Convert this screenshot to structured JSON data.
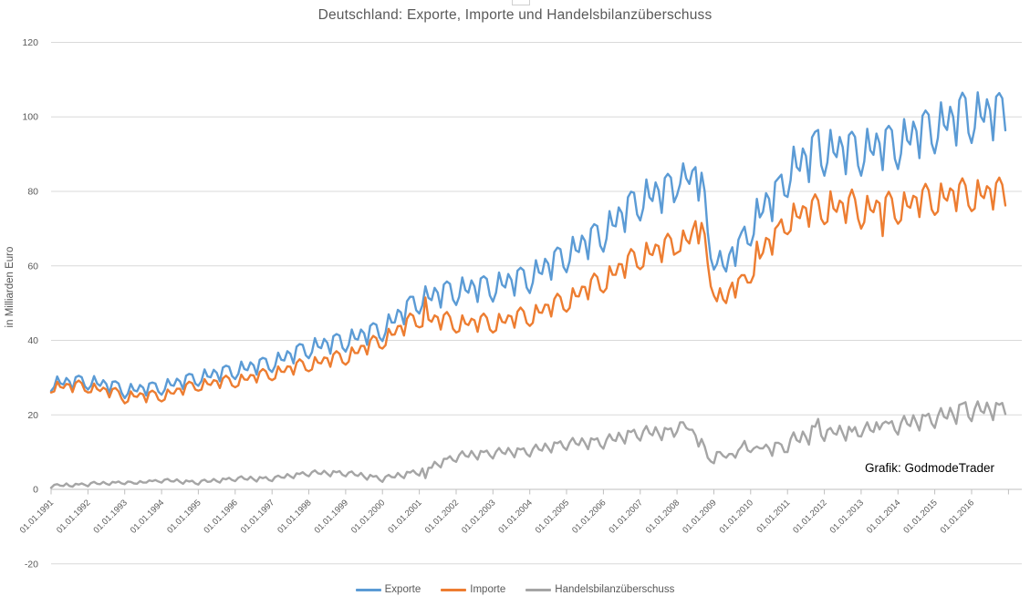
{
  "title": "Deutschland: Exporte, Importe und Handelsbilanzüberschuss",
  "annotation": "Grafik: GodmodeTrader",
  "colors": {
    "exporte": "#5B9BD5",
    "importe": "#ED7D31",
    "handelsbilanz": "#A5A5A5",
    "gridline": "#D9D9D9",
    "axis": "#BFBFBF",
    "tick_text": "#595959"
  },
  "chart_data": {
    "type": "line",
    "title": "Deutschland: Exporte, Importe und Handelsbilanzüberschuss",
    "ylabel": "in Milliarden Euro",
    "xlabel": "",
    "ylim": [
      -20,
      120
    ],
    "y_ticks": [
      120,
      100,
      80,
      60,
      40,
      20,
      0,
      -20
    ],
    "grid": "horizontal",
    "legend_position": "bottom",
    "x_frequency": "monthly",
    "x_range": [
      "01.01.1991",
      "01.12.2016"
    ],
    "x_tick_labels": [
      "01.01.1991",
      "01.01.1992",
      "01.01.1993",
      "01.01.1994",
      "01.01.1995",
      "01.01.1996",
      "01.01.1997",
      "01.01.1998",
      "01.01.1999",
      "01.01.2000",
      "01.01.2001",
      "01.01.2002",
      "01.01.2003",
      "01.01.2004",
      "01.01.2005",
      "01.01.2006",
      "01.01.2007",
      "01.01.2008",
      "01.01.2009",
      "01.01.2010",
      "01.01.2011",
      "01.01.2012",
      "01.01.2013",
      "01.01.2014",
      "01.01.2015",
      "01.01.2016"
    ],
    "series": [
      {
        "name": "Exporte",
        "color": "#5B9BD5",
        "values": [
          26.4,
          27.5,
          30.3,
          28.5,
          28.1,
          29.9,
          29.0,
          26.8,
          30.1,
          30.5,
          30.1,
          27.7,
          26.8,
          27.8,
          30.4,
          28.4,
          27.8,
          29.3,
          28.3,
          25.9,
          28.9,
          29.0,
          28.4,
          25.9,
          24.5,
          25.7,
          28.3,
          26.6,
          26.3,
          28.0,
          27.3,
          25.2,
          28.4,
          28.7,
          28.4,
          26.2,
          25.4,
          26.7,
          29.6,
          28.0,
          27.8,
          29.7,
          29.0,
          26.9,
          30.5,
          31.0,
          30.8,
          28.4,
          27.8,
          29.1,
          32.2,
          30.3,
          30.1,
          32.1,
          31.3,
          29.0,
          32.7,
          33.2,
          32.9,
          30.4,
          29.6,
          31.0,
          34.3,
          32.3,
          32.0,
          34.1,
          33.3,
          30.8,
          34.8,
          35.3,
          35.0,
          32.3,
          31.5,
          33.1,
          36.7,
          34.8,
          34.6,
          37.1,
          36.4,
          33.8,
          38.3,
          39.0,
          38.8,
          36.0,
          35.2,
          36.8,
          40.6,
          38.3,
          37.9,
          40.4,
          39.4,
          36.4,
          41.1,
          41.7,
          41.3,
          38.0,
          37.0,
          38.8,
          42.9,
          40.5,
          40.2,
          42.9,
          41.9,
          38.8,
          43.9,
          44.6,
          44.2,
          40.8,
          39.8,
          42.1,
          47.0,
          44.8,
          44.8,
          48.2,
          47.5,
          44.3,
          50.5,
          51.7,
          51.7,
          48.1,
          47.2,
          49.4,
          54.5,
          51.4,
          50.8,
          54.1,
          52.8,
          48.8,
          55.0,
          55.8,
          55.2,
          50.9,
          49.5,
          51.7,
          56.9,
          53.5,
          52.8,
          56.1,
          54.5,
          50.3,
          56.6,
          57.2,
          56.5,
          52.0,
          50.4,
          52.8,
          58.2,
          54.9,
          54.2,
          57.8,
          56.3,
          52.0,
          58.7,
          59.5,
          58.8,
          54.2,
          52.7,
          55.5,
          61.5,
          58.2,
          57.8,
          61.9,
          60.6,
          56.3,
          63.7,
          64.9,
          64.5,
          59.7,
          58.3,
          61.3,
          67.8,
          64.2,
          63.7,
          68.1,
          66.7,
          61.8,
          70.0,
          71.2,
          70.7,
          65.4,
          63.8,
          67.3,
          74.7,
          70.9,
          70.6,
          75.7,
          74.2,
          69.1,
          78.4,
          79.9,
          79.6,
          73.8,
          72.2,
          75.5,
          83.2,
          78.4,
          77.4,
          82.4,
          80.3,
          74.2,
          83.6,
          84.7,
          83.7,
          77.1,
          79.0,
          82.0,
          87.5,
          83.5,
          82.0,
          85.5,
          86.5,
          77.5,
          85.0,
          80.0,
          69.0,
          62.0,
          59.0,
          60.5,
          64.0,
          60.0,
          58.5,
          63.0,
          65.0,
          60.0,
          67.0,
          69.0,
          70.5,
          66.0,
          65.5,
          68.5,
          78.0,
          73.0,
          74.5,
          79.5,
          78.0,
          72.0,
          82.5,
          83.5,
          84.5,
          79.0,
          78.5,
          83.0,
          92.0,
          86.5,
          85.5,
          91.5,
          89.5,
          82.5,
          94.5,
          96.0,
          96.5,
          87.0,
          84.2,
          87.8,
          96.5,
          90.5,
          89.2,
          94.6,
          91.9,
          84.6,
          95.1,
          96.0,
          94.6,
          86.9,
          84.2,
          88.0,
          96.8,
          91.0,
          89.8,
          95.5,
          92.9,
          85.7,
          96.5,
          97.6,
          96.4,
          88.7,
          86.0,
          90.1,
          99.4,
          93.7,
          92.6,
          98.7,
          96.2,
          88.9,
          100.3,
          101.7,
          100.6,
          92.8,
          90.2,
          94.3,
          103.9,
          97.8,
          96.5,
          102.7,
          100.0,
          92.3,
          104.5,
          106.5,
          105.0,
          95.7,
          93.0,
          97.0,
          106.6,
          100.1,
          98.7,
          104.7,
          101.8,
          93.7,
          105.4,
          106.4,
          105.0,
          96.4
        ]
      },
      {
        "name": "Importe",
        "color": "#ED7D31",
        "values": [
          26.0,
          26.3,
          28.9,
          27.5,
          27.2,
          28.3,
          28.1,
          26.1,
          28.6,
          29.2,
          28.5,
          26.5,
          26.0,
          26.1,
          28.4,
          26.9,
          26.4,
          27.3,
          26.8,
          24.7,
          26.9,
          27.2,
          26.3,
          24.3,
          23.1,
          23.6,
          26.3,
          25.0,
          24.8,
          25.8,
          25.5,
          23.4,
          26.0,
          26.5,
          25.9,
          24.1,
          23.6,
          24.1,
          26.8,
          25.8,
          25.7,
          27.0,
          27.0,
          25.4,
          28.1,
          28.9,
          28.5,
          26.8,
          26.5,
          26.8,
          29.6,
          28.3,
          28.0,
          29.3,
          29.1,
          27.2,
          29.8,
          30.5,
          29.8,
          27.9,
          27.4,
          27.9,
          30.8,
          29.5,
          29.4,
          30.7,
          30.6,
          28.7,
          31.5,
          32.3,
          31.7,
          29.8,
          29.3,
          29.8,
          33.0,
          31.6,
          31.5,
          33.0,
          32.9,
          30.8,
          34.0,
          34.9,
          34.2,
          32.1,
          31.7,
          32.2,
          35.5,
          34.0,
          33.8,
          35.4,
          35.2,
          32.9,
          36.2,
          37.1,
          36.4,
          34.1,
          33.5,
          34.3,
          38.1,
          36.6,
          36.6,
          38.5,
          38.5,
          36.2,
          40.0,
          41.2,
          40.6,
          38.2,
          37.8,
          38.7,
          43.1,
          41.5,
          41.6,
          43.8,
          43.9,
          41.3,
          45.8,
          47.2,
          46.6,
          43.9,
          43.5,
          43.8,
          51.5,
          45.6,
          45.0,
          46.7,
          46.2,
          42.9,
          46.8,
          47.6,
          46.3,
          43.1,
          42.1,
          42.5,
          46.7,
          44.5,
          44.1,
          45.8,
          45.4,
          42.3,
          46.3,
          47.2,
          46.1,
          42.9,
          42.1,
          42.7,
          47.1,
          45.0,
          44.7,
          46.7,
          46.4,
          43.4,
          47.7,
          48.8,
          47.8,
          44.7,
          43.9,
          44.7,
          49.5,
          47.5,
          47.4,
          49.6,
          49.5,
          46.4,
          51.1,
          52.5,
          51.6,
          48.4,
          47.7,
          48.7,
          54.0,
          51.9,
          51.8,
          54.4,
          54.3,
          51.0,
          56.3,
          57.9,
          57.0,
          53.6,
          52.9,
          54.0,
          59.9,
          57.6,
          57.6,
          60.5,
          60.4,
          56.8,
          62.7,
          64.5,
          63.6,
          59.8,
          59.1,
          59.9,
          66.2,
          63.3,
          62.9,
          65.7,
          65.3,
          61.0,
          67.1,
          68.6,
          67.3,
          63.0,
          63.5,
          64.0,
          69.5,
          67.0,
          66.0,
          69.5,
          72.0,
          66.0,
          71.5,
          68.5,
          60.5,
          54.5,
          52.0,
          50.5,
          54.0,
          51.0,
          50.0,
          53.5,
          55.5,
          51.5,
          56.5,
          57.5,
          57.5,
          55.5,
          55.5,
          57.5,
          66.5,
          62.0,
          63.5,
          67.5,
          67.0,
          63.0,
          70.0,
          71.0,
          72.5,
          69.0,
          68.5,
          69.5,
          76.7,
          73.3,
          72.8,
          76.0,
          75.5,
          70.5,
          77.5,
          79.2,
          77.6,
          72.6,
          71.2,
          71.9,
          80.0,
          75.4,
          74.5,
          77.5,
          76.8,
          71.5,
          78.3,
          80.5,
          77.9,
          72.6,
          70.0,
          71.7,
          78.8,
          75.1,
          74.4,
          77.5,
          76.8,
          68.0,
          78.3,
          79.9,
          78.1,
          72.8,
          71.3,
          72.3,
          79.7,
          76.1,
          75.6,
          78.8,
          78.3,
          73.1,
          80.3,
          82.0,
          80.3,
          75.1,
          73.7,
          74.6,
          82.1,
          78.3,
          77.5,
          80.8,
          80.1,
          74.7,
          81.8,
          83.5,
          81.6,
          76.2,
          74.7,
          75.4,
          83.0,
          79.0,
          78.2,
          81.4,
          80.6,
          75.1,
          82.2,
          83.7,
          81.8,
          76.2
        ]
      },
      {
        "name": "Handelsbilanzüberschuss",
        "color": "#A5A5A5",
        "values": [
          0.4,
          1.2,
          1.4,
          1.0,
          0.9,
          1.6,
          0.9,
          0.7,
          1.5,
          1.3,
          1.6,
          1.2,
          0.8,
          1.7,
          2.0,
          1.5,
          1.4,
          2.0,
          1.5,
          1.2,
          2.0,
          1.8,
          2.1,
          1.6,
          1.4,
          2.1,
          2.0,
          1.6,
          1.5,
          2.2,
          1.8,
          1.8,
          2.4,
          2.2,
          2.5,
          2.1,
          1.8,
          2.6,
          2.8,
          2.2,
          2.1,
          2.7,
          2.0,
          1.5,
          2.4,
          2.1,
          2.3,
          1.6,
          1.3,
          2.3,
          2.6,
          2.0,
          2.1,
          2.8,
          2.2,
          1.8,
          2.9,
          2.7,
          3.1,
          2.5,
          2.2,
          3.1,
          3.5,
          2.8,
          2.6,
          3.4,
          2.7,
          2.1,
          3.3,
          3.0,
          3.3,
          2.5,
          2.2,
          3.3,
          3.7,
          3.2,
          3.1,
          4.1,
          3.5,
          3.0,
          4.3,
          4.1,
          4.6,
          3.9,
          3.5,
          4.6,
          5.1,
          4.3,
          4.1,
          5.0,
          4.2,
          3.5,
          4.9,
          4.6,
          4.9,
          3.9,
          3.5,
          4.5,
          4.8,
          3.9,
          3.6,
          4.4,
          3.4,
          2.6,
          3.9,
          3.4,
          3.6,
          2.6,
          2.0,
          3.4,
          3.9,
          3.3,
          3.2,
          4.4,
          3.6,
          3.0,
          4.7,
          4.5,
          5.1,
          4.2,
          3.7,
          5.6,
          3.0,
          5.8,
          5.8,
          7.4,
          6.6,
          5.9,
          8.2,
          8.2,
          8.9,
          7.8,
          7.4,
          9.2,
          10.2,
          9.0,
          8.7,
          10.3,
          9.1,
          8.0,
          10.3,
          10.0,
          10.4,
          9.1,
          8.3,
          10.1,
          11.1,
          9.9,
          9.5,
          11.1,
          9.9,
          8.6,
          11.0,
          10.7,
          11.0,
          9.5,
          8.8,
          10.8,
          12.0,
          10.7,
          10.4,
          12.3,
          11.1,
          9.9,
          12.6,
          12.4,
          12.9,
          11.3,
          10.6,
          12.6,
          13.8,
          12.3,
          11.9,
          13.7,
          12.4,
          10.8,
          13.7,
          13.3,
          13.7,
          11.8,
          10.9,
          13.3,
          14.8,
          13.3,
          13.0,
          15.2,
          13.8,
          12.3,
          15.7,
          15.4,
          16.0,
          14.0,
          13.1,
          15.6,
          17.0,
          15.1,
          14.5,
          16.7,
          15.0,
          13.2,
          16.5,
          16.1,
          16.4,
          14.1,
          15.5,
          18.0,
          18.0,
          16.5,
          16.0,
          16.0,
          14.5,
          11.5,
          13.5,
          11.5,
          8.5,
          7.5,
          7.0,
          10.0,
          10.0,
          9.0,
          8.5,
          9.5,
          9.5,
          8.5,
          10.5,
          11.5,
          13.0,
          10.5,
          10.0,
          11.0,
          11.5,
          11.0,
          11.0,
          12.0,
          11.0,
          9.0,
          12.5,
          12.5,
          12.0,
          10.0,
          10.0,
          13.5,
          15.3,
          13.2,
          12.7,
          15.5,
          14.0,
          12.0,
          17.0,
          16.8,
          18.9,
          14.4,
          13.0,
          15.9,
          16.5,
          15.1,
          14.7,
          17.1,
          15.1,
          13.1,
          16.8,
          15.5,
          16.7,
          14.3,
          14.2,
          16.3,
          18.0,
          15.9,
          15.4,
          18.0,
          16.1,
          17.7,
          18.2,
          17.7,
          18.3,
          15.9,
          14.7,
          17.8,
          19.7,
          17.6,
          17.0,
          19.9,
          17.9,
          15.8,
          20.0,
          19.7,
          20.3,
          17.7,
          16.5,
          19.7,
          21.8,
          19.5,
          19.0,
          21.9,
          19.9,
          17.6,
          22.7,
          23.0,
          23.4,
          19.5,
          18.3,
          21.6,
          23.6,
          21.1,
          20.5,
          23.3,
          21.2,
          18.6,
          23.2,
          22.7,
          23.2,
          20.2
        ]
      }
    ]
  }
}
